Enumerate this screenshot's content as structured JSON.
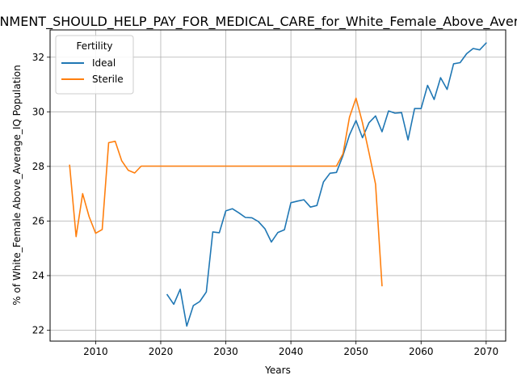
{
  "chart_data": {
    "type": "line",
    "title": "GOVERNMENT_SHOULD_HELP_PAY_FOR_MEDICAL_CARE_for_White_Female_Above_Average_IQ",
    "xlabel": "Years",
    "ylabel": "% of White_Female Above_Average_IQ Population",
    "xlim": [
      2003,
      2073
    ],
    "ylim": [
      21.6,
      33.0
    ],
    "xticks": [
      2010,
      2020,
      2030,
      2040,
      2050,
      2060,
      2070
    ],
    "yticks": [
      22,
      24,
      26,
      28,
      30,
      32
    ],
    "grid": true,
    "legend": {
      "title": "Fertility",
      "placement": "top-left"
    },
    "series": [
      {
        "name": "Ideal",
        "color": "#1f77b4",
        "x": [
          2021,
          2022,
          2023,
          2024,
          2025,
          2026,
          2027,
          2028,
          2029,
          2030,
          2031,
          2032,
          2033,
          2034,
          2035,
          2036,
          2037,
          2038,
          2039,
          2040,
          2041,
          2042,
          2043,
          2044,
          2045,
          2046,
          2047,
          2048,
          2049,
          2050,
          2051,
          2052,
          2053,
          2054,
          2055,
          2056,
          2057,
          2058,
          2059,
          2060,
          2061,
          2062,
          2063,
          2064,
          2065,
          2066,
          2067,
          2068,
          2069,
          2070
        ],
        "values": [
          23.3,
          22.95,
          23.5,
          22.15,
          22.9,
          23.05,
          23.4,
          25.6,
          25.57,
          26.37,
          26.45,
          26.3,
          26.13,
          26.12,
          25.98,
          25.72,
          25.23,
          25.58,
          25.68,
          26.67,
          26.73,
          26.78,
          26.51,
          26.57,
          27.43,
          27.75,
          27.78,
          28.4,
          29.15,
          29.68,
          29.05,
          29.6,
          29.85,
          29.27,
          30.03,
          29.95,
          29.97,
          28.97,
          30.12,
          30.12,
          30.97,
          30.45,
          31.25,
          30.82,
          31.76,
          31.8,
          32.13,
          32.32,
          32.27,
          32.52
        ]
      },
      {
        "name": "Sterile",
        "color": "#ff7f0e",
        "x": [
          2006,
          2007,
          2008,
          2009,
          2010,
          2011,
          2012,
          2013,
          2014,
          2015,
          2016,
          2017,
          2018,
          2019,
          2020,
          2021,
          2022,
          2023,
          2024,
          2025,
          2026,
          2027,
          2028,
          2029,
          2030,
          2031,
          2032,
          2033,
          2034,
          2035,
          2036,
          2037,
          2038,
          2039,
          2040,
          2041,
          2042,
          2043,
          2044,
          2045,
          2046,
          2047,
          2048,
          2049,
          2050,
          2051,
          2052,
          2053,
          2054
        ],
        "values": [
          28.04,
          25.43,
          27.0,
          26.16,
          25.55,
          25.69,
          28.87,
          28.92,
          28.21,
          27.86,
          27.76,
          28.01,
          28.01,
          28.01,
          28.01,
          28.01,
          28.01,
          28.01,
          28.01,
          28.01,
          28.01,
          28.01,
          28.01,
          28.01,
          28.01,
          28.01,
          28.01,
          28.01,
          28.01,
          28.01,
          28.01,
          28.01,
          28.01,
          28.01,
          28.01,
          28.01,
          28.01,
          28.01,
          28.01,
          28.01,
          28.01,
          28.01,
          28.46,
          29.8,
          30.5,
          29.6,
          28.5,
          27.35,
          23.63
        ]
      }
    ]
  }
}
